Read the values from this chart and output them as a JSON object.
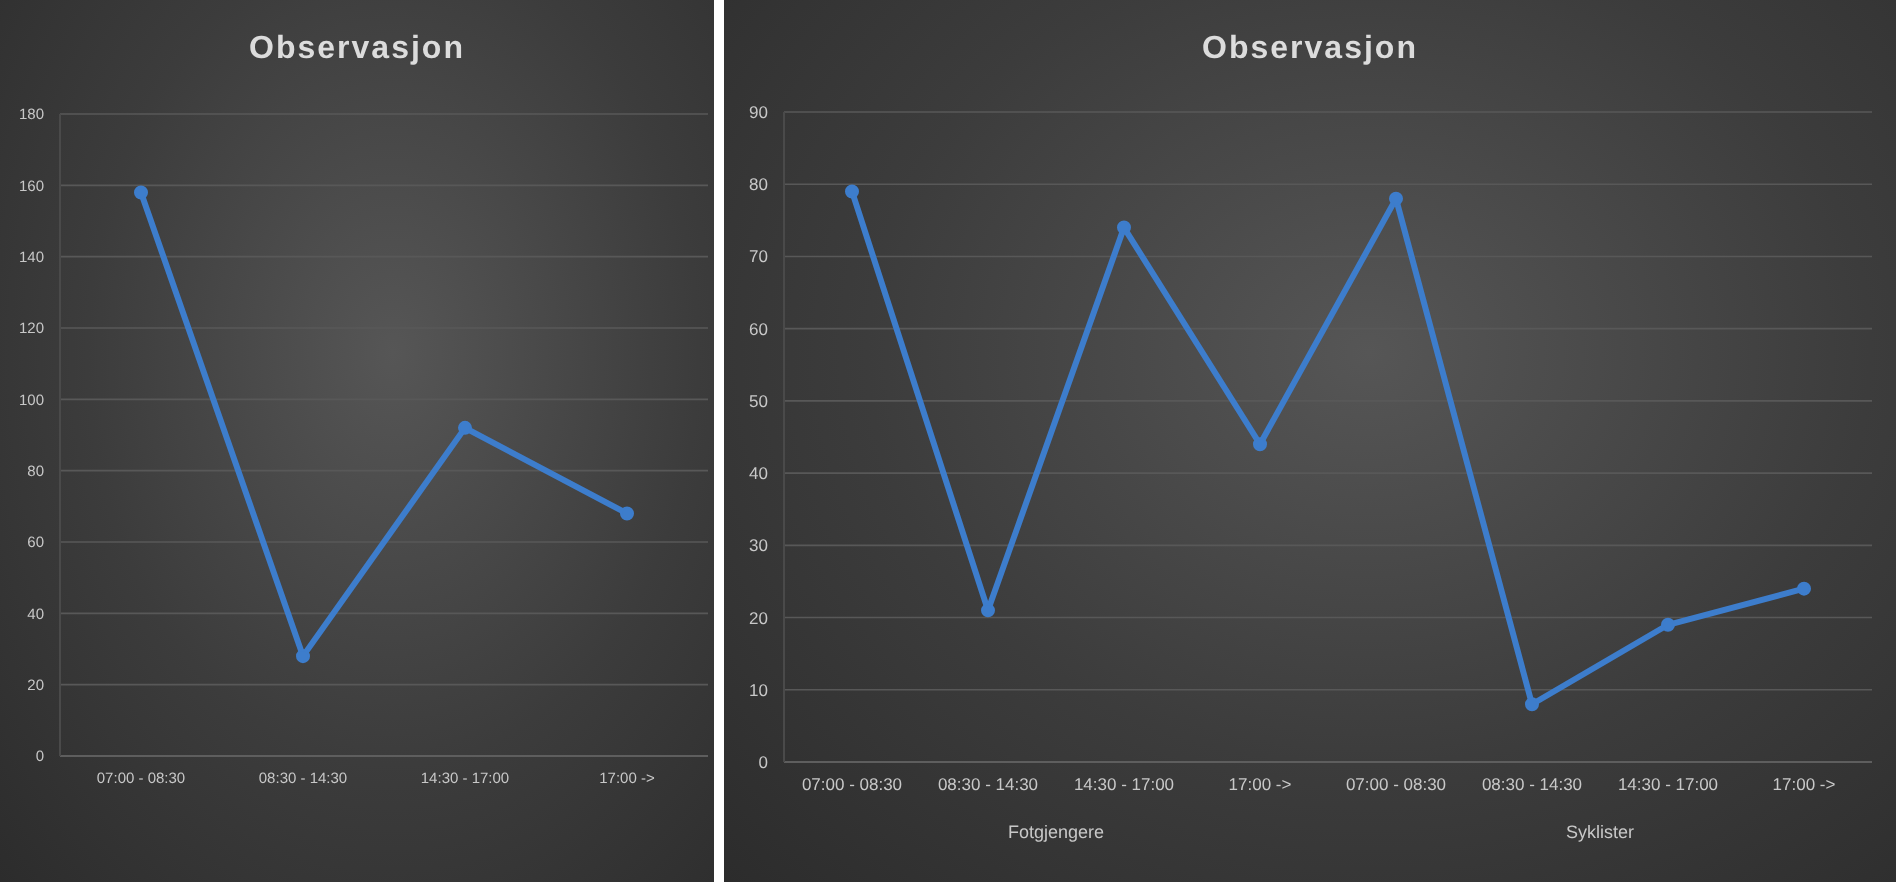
{
  "chart_data": [
    {
      "type": "line",
      "title": "Observasjon",
      "categories": [
        "07:00 - 08:30",
        "08:30 - 14:30",
        "14:30 - 17:00",
        "17:00 ->"
      ],
      "values": [
        158,
        28,
        92,
        68
      ],
      "color": "#3d7dcc",
      "ylim": [
        0,
        180
      ],
      "yticks": [
        0,
        20,
        40,
        60,
        80,
        100,
        120,
        140,
        160,
        180
      ],
      "grid": "y",
      "marker": "circle",
      "line_style": "solid"
    },
    {
      "type": "line",
      "title": "Observasjon",
      "categories": [
        "07:00 - 08:30",
        "08:30 - 14:30",
        "14:30 - 17:00",
        "17:00 ->",
        "07:00 - 08:30",
        "08:30 - 14:30",
        "14:30 - 17:00",
        "17:00 ->"
      ],
      "values": [
        79,
        21,
        74,
        44,
        78,
        8,
        19,
        24
      ],
      "color": "#3d7dcc",
      "ylim": [
        0,
        90
      ],
      "yticks": [
        0,
        10,
        20,
        30,
        40,
        50,
        60,
        70,
        80,
        90
      ],
      "grid": "y",
      "marker": "circle",
      "line_style": "solid",
      "annotations": [
        "Fotgjengere",
        "Syklister"
      ]
    }
  ]
}
